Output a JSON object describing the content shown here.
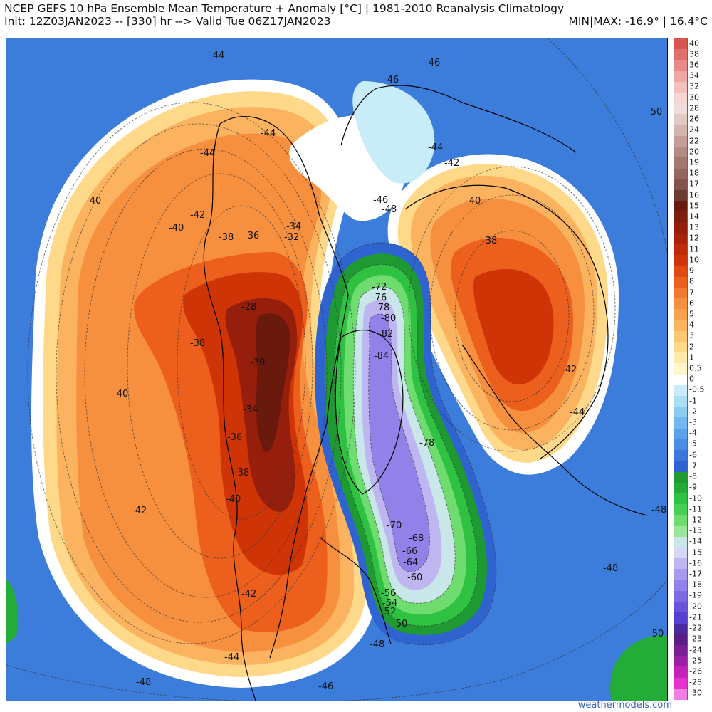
{
  "header": {
    "title": "NCEP GEFS 10 hPa Ensemble Mean Temperature + Anomaly [°C] | 1981-2010 Reanalysis Climatology",
    "init": "Init: 12Z03JAN2023 -- [330] hr --> Valid Tue 06Z17JAN2023",
    "minmax": "MIN|MAX: -16.9° | 16.4°C"
  },
  "watermark": "weathermodels.com",
  "colorbar": {
    "labels": [
      "40",
      "38",
      "36",
      "34",
      "32",
      "30",
      "28",
      "26",
      "24",
      "22",
      "20",
      "19",
      "18",
      "17",
      "16",
      "15",
      "14",
      "13",
      "12",
      "11",
      "10",
      "9",
      "8",
      "7",
      "6",
      "5",
      "4",
      "3",
      "2",
      "1",
      "0.5",
      "0",
      "-0.5",
      "-1",
      "-2",
      "-3",
      "-4",
      "-5",
      "-6",
      "-7",
      "-8",
      "-9",
      "-10",
      "-11",
      "-12",
      "-13",
      "-14",
      "-15",
      "-16",
      "-17",
      "-18",
      "-19",
      "-20",
      "-21",
      "-22",
      "-23",
      "-24",
      "-25",
      "-26",
      "-28",
      "-30"
    ],
    "colors": [
      "#d9534f",
      "#e06f6b",
      "#e88b88",
      "#eea6a3",
      "#f3c0be",
      "#f6d5d3",
      "#f0dcd8",
      "#e2c9c4",
      "#d4b4ae",
      "#c49e97",
      "#b38b84",
      "#a37870",
      "#94665e",
      "#84544c",
      "#6e3b32",
      "#6a1a0c",
      "#7e1e0c",
      "#951f0c",
      "#a82309",
      "#bd2b08",
      "#cf3407",
      "#e04a10",
      "#ec5f1d",
      "#f27a2e",
      "#f68f3e",
      "#f9a14d",
      "#fbb35f",
      "#fdc673",
      "#fed98a",
      "#ffe9a7",
      "#fff6cc",
      "#ffffff",
      "#c9edf8",
      "#a9def4",
      "#8ccbf2",
      "#72b7ef",
      "#5aa2ea",
      "#4a8de4",
      "#3c78dc",
      "#2f64d0",
      "#1f9a33",
      "#24ac39",
      "#2fc142",
      "#45cf54",
      "#6edc6f",
      "#9ae69a",
      "#c9e7e9",
      "#d6d6f4",
      "#bdb6f1",
      "#a89aee",
      "#9381ea",
      "#7e6ae4",
      "#6a54dc",
      "#5740d0",
      "#4b2a9e",
      "#5a1f86",
      "#7a1f93",
      "#9c20a6",
      "#c422bb",
      "#e531cd",
      "#f27fe1"
    ]
  },
  "map": {
    "contour_labels": [
      {
        "t": "-44"
      },
      {
        "t": "-46"
      },
      {
        "t": "-46"
      },
      {
        "t": "-50"
      },
      {
        "t": "-44"
      },
      {
        "t": "-44"
      },
      {
        "t": "-44"
      },
      {
        "t": "-42"
      },
      {
        "t": "-46"
      },
      {
        "t": "-48"
      },
      {
        "t": "-40"
      },
      {
        "t": "-40"
      },
      {
        "t": "-42"
      },
      {
        "t": "-40"
      },
      {
        "t": "-38"
      },
      {
        "t": "-36"
      },
      {
        "t": "-34"
      },
      {
        "t": "-32"
      },
      {
        "t": "-38"
      },
      {
        "t": "-72"
      },
      {
        "t": "-76"
      },
      {
        "t": "-78"
      },
      {
        "t": "-80"
      },
      {
        "t": "-82"
      },
      {
        "t": "-28"
      },
      {
        "t": "-38"
      },
      {
        "t": "-30"
      },
      {
        "t": "-84"
      },
      {
        "t": "-42"
      },
      {
        "t": "-40"
      },
      {
        "t": "-34"
      },
      {
        "t": "-44"
      },
      {
        "t": "-36"
      },
      {
        "t": "-78"
      },
      {
        "t": "-38"
      },
      {
        "t": "-42"
      },
      {
        "t": "-40"
      },
      {
        "t": "-48"
      },
      {
        "t": "-70"
      },
      {
        "t": "-68"
      },
      {
        "t": "-66"
      },
      {
        "t": "-64"
      },
      {
        "t": "-60"
      },
      {
        "t": "-48"
      },
      {
        "t": "-42"
      },
      {
        "t": "-56"
      },
      {
        "t": "-54"
      },
      {
        "t": "-52"
      },
      {
        "t": "-50"
      },
      {
        "t": "-48"
      },
      {
        "t": "-44"
      },
      {
        "t": "-50"
      },
      {
        "t": "-48"
      },
      {
        "t": "-46"
      }
    ]
  }
}
